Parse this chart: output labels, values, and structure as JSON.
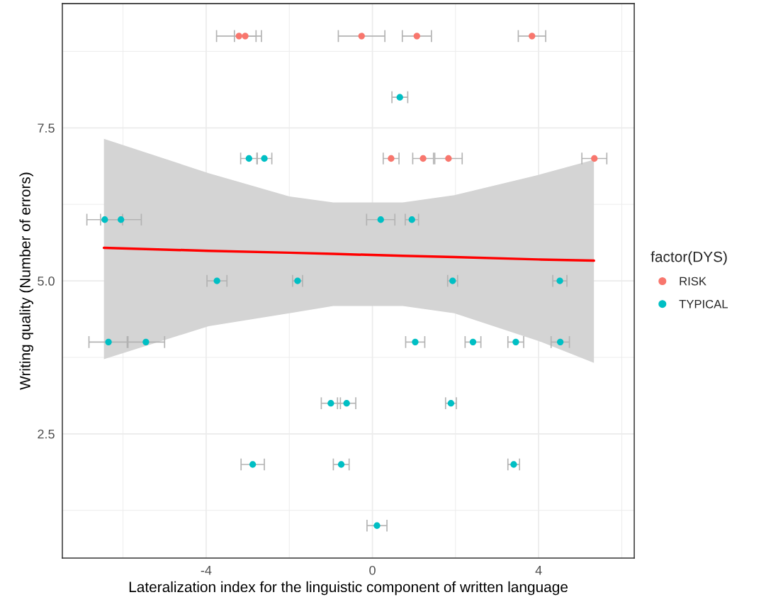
{
  "chart_data": {
    "type": "scatter",
    "xlabel": "Lateralization index for the linguistic component of written language",
    "ylabel": "Writing quality (Number of errors)",
    "legend_title": "factor(DYS)",
    "xlim": [
      -7.46,
      6.3
    ],
    "ylim": [
      0.47,
      9.53
    ],
    "xticks": [
      {
        "value": -4,
        "label": "-4"
      },
      0,
      4
    ],
    "yticks": [
      2.5,
      {
        "value": 5,
        "label": "5.0"
      },
      7.5
    ],
    "grid": true,
    "legend": "right",
    "series": [
      {
        "type": "line",
        "color": "#ff0000",
        "x": [
          -6.46,
          -3.94,
          -2.0,
          -0.94,
          0.73,
          1.97,
          3.99,
          5.33
        ],
        "values": [
          5.54,
          5.49,
          5.46,
          5.44,
          5.41,
          5.39,
          5.35,
          5.33
        ],
        "lower": [
          3.72,
          4.26,
          4.47,
          4.59,
          4.59,
          4.47,
          4.02,
          3.66
        ],
        "upper": [
          7.32,
          6.76,
          6.38,
          6.28,
          6.28,
          6.4,
          6.73,
          6.98
        ]
      },
      {
        "name": "RISK",
        "color": "#f8766d",
        "marker": "circle",
        "x": [
          -3.21,
          -3.06,
          -0.26,
          1.07,
          3.84,
          0.45,
          1.22,
          1.83,
          5.34
        ],
        "values": [
          9,
          9,
          9,
          9,
          9,
          7,
          7,
          7,
          7
        ],
        "xerrors": [
          0.54,
          0.26,
          0.56,
          0.35,
          0.33,
          0.19,
          0.25,
          0.33,
          0.3
        ]
      },
      {
        "name": "TYPICAL",
        "color": "#00bfc4",
        "marker": "circle",
        "x": [
          0.66,
          -2.97,
          -2.6,
          -6.44,
          -6.05,
          0.2,
          0.95,
          -3.74,
          -1.8,
          1.93,
          4.51,
          -6.35,
          -5.45,
          1.03,
          2.42,
          3.45,
          4.52,
          -1.0,
          -0.62,
          1.89,
          -2.88,
          -0.75,
          3.4,
          0.11
        ],
        "values": [
          8,
          7,
          7,
          6,
          6,
          6,
          6,
          5,
          5,
          5,
          5,
          4,
          4,
          4,
          4,
          4,
          4,
          3,
          3,
          3,
          2,
          2,
          2,
          1
        ],
        "xerrors": [
          0.19,
          0.2,
          0.18,
          0.43,
          0.49,
          0.34,
          0.16,
          0.24,
          0.12,
          0.12,
          0.17,
          0.47,
          0.45,
          0.23,
          0.19,
          0.19,
          0.22,
          0.23,
          0.22,
          0.13,
          0.28,
          0.19,
          0.14,
          0.24
        ]
      }
    ]
  }
}
